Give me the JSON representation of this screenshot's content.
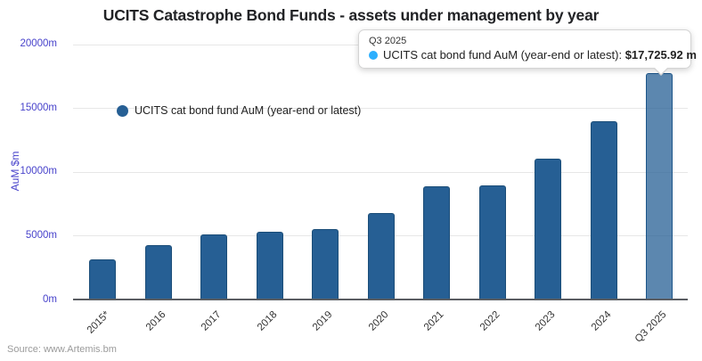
{
  "title": "UCITS Catastrophe Bond Funds - assets under management by year",
  "source": "Source: www.Artemis.bm",
  "legend": {
    "label": "UCITS cat bond fund AuM (year-end or latest)",
    "marker_color": "#265f94"
  },
  "tooltip": {
    "header": "Q3 2025",
    "series_label": "UCITS cat bond fund AuM (year-end or latest): ",
    "value": "$17,725.92 m",
    "bullet_color": "#2caffe"
  },
  "y_axis": {
    "title": "AuM $m",
    "tick_values": [
      0,
      5000,
      10000,
      15000,
      20000
    ],
    "tick_labels": [
      "0m",
      "5000m",
      "10000m",
      "15000m",
      "20000m"
    ]
  },
  "chart_data": {
    "type": "bar",
    "title": "UCITS Catastrophe Bond Funds - assets under management by year",
    "xlabel": "",
    "ylabel": "AuM $m",
    "ylim": [
      0,
      20000
    ],
    "grid": true,
    "legend_position": "top-left-inside",
    "categories": [
      "2015*",
      "2016",
      "2017",
      "2018",
      "2019",
      "2020",
      "2021",
      "2022",
      "2023",
      "2024",
      "Q3 2025"
    ],
    "series": [
      {
        "name": "UCITS cat bond fund AuM (year-end or latest)",
        "values": [
          3150,
          4280,
          5100,
          5280,
          5530,
          6800,
          8850,
          8950,
          11000,
          13950,
          17725.92
        ]
      }
    ],
    "highlighted_index": 10,
    "highlighted_label": "Q3 2025",
    "bar_color": "#265f94",
    "bar_border_color": "#1b4d78",
    "highlight_fill": "rgba(38,95,148,0.75)"
  }
}
